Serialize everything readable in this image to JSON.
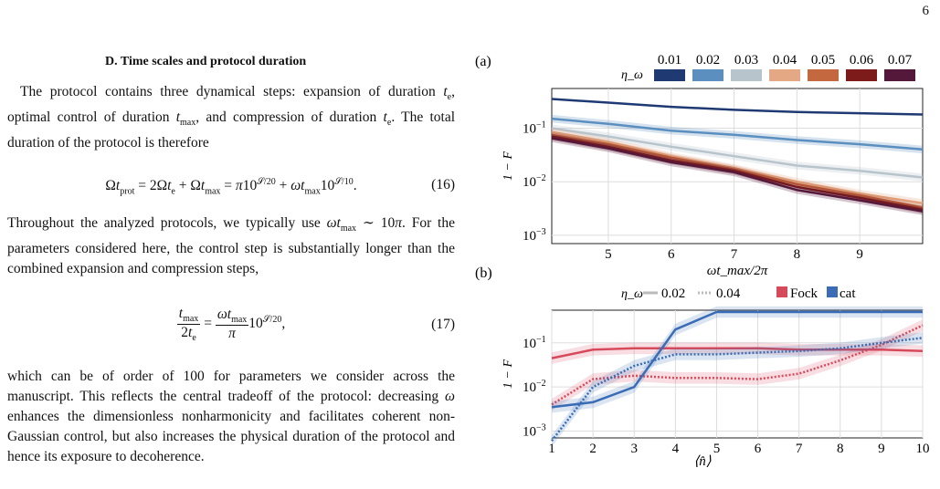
{
  "page_number": "6",
  "section_heading": "D.   Time scales and protocol duration",
  "paragraphs": {
    "p1": "The protocol contains three dynamical steps: expansion of duration t_e, optimal control of duration t_max, and compression of duration t_e. The total duration of the protocol is therefore",
    "p2": "Throughout the analyzed protocols, we typically use ωt_max ∼ 10π. For the parameters considered here, the control step is substantially longer than the combined expansion and compression steps,",
    "p3": "which can be of order of 100 for parameters we consider across the manuscript. This reflects the central tradeoff of the protocol: decreasing ω enhances the dimensionless nonharmonicity and facilitates coherent non-Gaussian control, but also increases the physical duration of the protocol and hence its exposure to decoherence."
  },
  "equations": {
    "eq16": "Ωt_prot = 2Ωt_e + Ωt_max = π10^{S/20} + ωt_max10^{S/10}.",
    "eq16_number": "(16)",
    "eq17": "t_max / 2t_e = ωt_max / π · 10^{S/20},",
    "eq17_number": "(17)"
  },
  "colors": {
    "eta": [
      "#1f3a73",
      "#5b8fbf",
      "#b8c4cc",
      "#e4a885",
      "#c4683f",
      "#7d1a1a",
      "#54183a"
    ],
    "fock": "#d64a5c",
    "cat": "#3a6db5"
  },
  "chart_data": [
    {
      "panel": "(a)",
      "type": "line",
      "xlabel": "ωt_max/2π",
      "ylabel": "1 − F",
      "yscale": "log",
      "xlim": [
        4.1,
        10
      ],
      "ylim": [
        0.0007,
        0.55
      ],
      "xticks": [
        "5",
        "6",
        "7",
        "8",
        "9"
      ],
      "yticks": [
        "10^-1",
        "10^-2",
        "10^-3"
      ],
      "legend_title": "η_ω",
      "legend_labels": [
        "0.01",
        "0.02",
        "0.03",
        "0.04",
        "0.05",
        "0.06",
        "0.07"
      ],
      "grid": true,
      "x": [
        4.1,
        5,
        6,
        7,
        8,
        9,
        10
      ],
      "series": [
        {
          "name": "0.01",
          "values": [
            0.35,
            0.3,
            0.25,
            0.22,
            0.2,
            0.19,
            0.18
          ]
        },
        {
          "name": "0.02",
          "values": [
            0.15,
            0.12,
            0.09,
            0.075,
            0.06,
            0.05,
            0.04
          ]
        },
        {
          "name": "0.03",
          "values": [
            0.1,
            0.07,
            0.045,
            0.03,
            0.02,
            0.016,
            0.012
          ]
        },
        {
          "name": "0.04",
          "values": [
            0.085,
            0.055,
            0.03,
            0.018,
            0.01,
            0.006,
            0.004
          ]
        },
        {
          "name": "0.05",
          "values": [
            0.075,
            0.05,
            0.028,
            0.017,
            0.009,
            0.0055,
            0.0033
          ]
        },
        {
          "name": "0.06",
          "values": [
            0.07,
            0.045,
            0.025,
            0.016,
            0.008,
            0.005,
            0.003
          ]
        },
        {
          "name": "0.07",
          "values": [
            0.065,
            0.042,
            0.023,
            0.015,
            0.007,
            0.0045,
            0.0028
          ]
        }
      ]
    },
    {
      "panel": "(b)",
      "type": "line",
      "xlabel": "⟨n̂⟩",
      "ylabel": "1 − F",
      "yscale": "log",
      "xlim": [
        1,
        10
      ],
      "ylim": [
        0.0007,
        0.55
      ],
      "xticks": [
        "1",
        "2",
        "3",
        "4",
        "5",
        "6",
        "7",
        "8",
        "9",
        "10"
      ],
      "yticks": [
        "10^-1",
        "10^-2",
        "10^-3"
      ],
      "legend_eta_title": "η_ω",
      "legend_eta_labels": [
        "0.02",
        "0.04"
      ],
      "legend_state_labels": [
        "Fock",
        "cat"
      ],
      "grid": true,
      "x": [
        1,
        2,
        3,
        4,
        5,
        6,
        7,
        8,
        9,
        10
      ],
      "series": [
        {
          "name": "Fock",
          "eta": "0.02",
          "values": [
            0.045,
            0.07,
            0.075,
            0.075,
            0.075,
            0.075,
            0.07,
            0.07,
            0.07,
            0.065
          ]
        },
        {
          "name": "Fock",
          "eta": "0.04",
          "values": [
            0.004,
            0.015,
            0.018,
            0.016,
            0.016,
            0.015,
            0.02,
            0.04,
            0.09,
            0.25
          ]
        },
        {
          "name": "cat",
          "eta": "0.02",
          "values": [
            0.0035,
            0.0045,
            0.01,
            0.2,
            0.5,
            0.5,
            0.5,
            0.5,
            0.5,
            0.5
          ]
        },
        {
          "name": "cat",
          "eta": "0.04",
          "values": [
            0.0006,
            0.01,
            0.03,
            0.055,
            0.055,
            0.06,
            0.065,
            0.075,
            0.1,
            0.13
          ]
        }
      ]
    }
  ]
}
